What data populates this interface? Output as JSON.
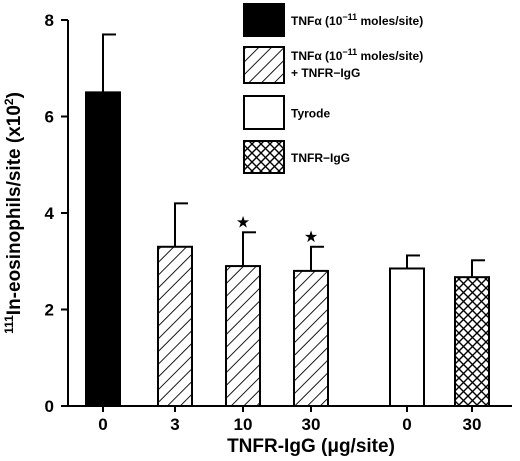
{
  "chart_data": {
    "type": "bar",
    "xlabel": "TNFR-IgG (μg/site)",
    "ylabel_base": "111",
    "ylabel_main": "In-eosinophils/site (x10",
    "ylabel_exp": "2",
    "ylabel_tail": ")",
    "ylim": [
      0,
      8
    ],
    "yticks": [
      "0",
      "2",
      "4",
      "6",
      "8"
    ],
    "categories": [
      "0",
      "3",
      "10",
      "30",
      "0",
      "30"
    ],
    "bars": [
      {
        "category": "0",
        "value": 6.5,
        "error": 1.2,
        "fill": "solid",
        "sig": ""
      },
      {
        "category": "3",
        "value": 3.3,
        "error": 0.9,
        "fill": "hatch",
        "sig": ""
      },
      {
        "category": "10",
        "value": 2.9,
        "error": 0.7,
        "fill": "hatch",
        "sig": "★"
      },
      {
        "category": "30",
        "value": 2.8,
        "error": 0.5,
        "fill": "hatch",
        "sig": "★"
      },
      {
        "category": "0",
        "value": 2.85,
        "error": 0.27,
        "fill": "white",
        "sig": ""
      },
      {
        "category": "30",
        "value": 2.67,
        "error": 0.35,
        "fill": "cross",
        "sig": ""
      }
    ],
    "legend": [
      {
        "fill": "solid",
        "line1": "TNFα (10",
        "sup": "−11",
        "line1_tail": " moles/site)",
        "line2": ""
      },
      {
        "fill": "hatch",
        "line1": "TNFα (10",
        "sup": "−11",
        "line1_tail": " moles/site)",
        "line2": "+ TNFR−IgG"
      },
      {
        "fill": "white",
        "line1": "Tyrode",
        "sup": "",
        "line1_tail": "",
        "line2": ""
      },
      {
        "fill": "cross",
        "line1": "TNFR−IgG",
        "sup": "",
        "line1_tail": "",
        "line2": ""
      }
    ],
    "legend_position": "top-right",
    "grid": false
  }
}
